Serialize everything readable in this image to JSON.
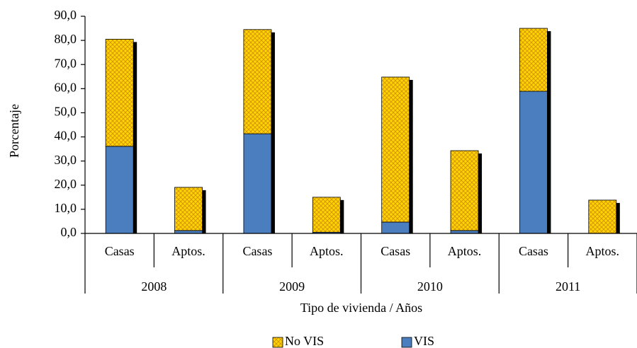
{
  "chart_data": {
    "type": "stacked_bar",
    "y_label": "Porcentaje",
    "x_label": "Tipo de vivienda / Años",
    "categories": [
      "Casas",
      "Aptos.",
      "Casas",
      "Aptos.",
      "Casas",
      "Aptos.",
      "Casas",
      "Aptos."
    ],
    "groups": [
      "2008",
      "2009",
      "2010",
      "2011"
    ],
    "series": [
      {
        "name": "VIS",
        "color": "#4a7ebf",
        "values": [
          36.1,
          1.2,
          41.3,
          0.5,
          4.7,
          1.2,
          58.9,
          0.0
        ]
      },
      {
        "name": "No VIS",
        "color": "#ffd700",
        "hatch": "#d9960a",
        "values": [
          44.4,
          17.9,
          43.2,
          14.5,
          60.1,
          33.1,
          26.1,
          13.8
        ]
      }
    ],
    "ylim": [
      0,
      90
    ],
    "yticks": [
      {
        "value": 0,
        "label": "0,0"
      },
      {
        "value": 10,
        "label": "10,0"
      },
      {
        "value": 20,
        "label": "20,0"
      },
      {
        "value": 30,
        "label": "30,0"
      },
      {
        "value": 40,
        "label": "40,0"
      },
      {
        "value": 50,
        "label": "50,0"
      },
      {
        "value": 60,
        "label": "60,0"
      },
      {
        "value": 70,
        "label": "70,0"
      },
      {
        "value": 80,
        "label": "80,0"
      },
      {
        "value": 90,
        "label": "90,0"
      }
    ],
    "grid": false,
    "shadow": true,
    "legend": "bottom"
  }
}
